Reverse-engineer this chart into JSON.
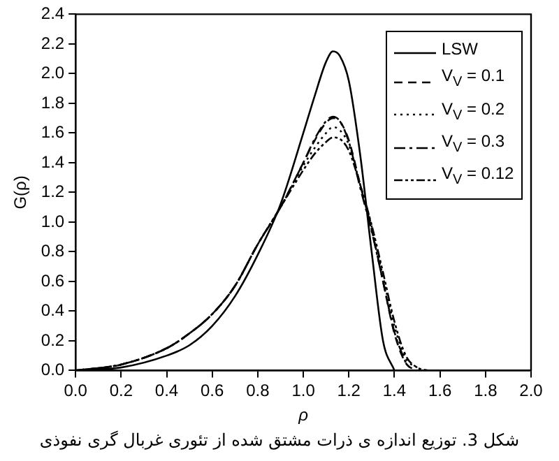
{
  "chart_data": {
    "type": "line",
    "xlabel": "ρ",
    "ylabel": "G(ρ)",
    "annotations": [
      "شکل 3. توزیع اندازه ی ذرات مشتق شده از تئوری غربال گری نفوذی"
    ],
    "x": [
      0,
      0.2,
      0.4,
      0.5,
      0.6,
      0.7,
      0.8,
      0.9,
      1.0,
      1.05,
      1.1,
      1.13,
      1.16,
      1.2,
      1.25,
      1.3,
      1.35,
      1.4,
      1.45,
      1.5,
      1.55
    ],
    "xlim": [
      0,
      2
    ],
    "xticks": [
      {
        "value": 0,
        "label": "0.0"
      },
      0.2,
      0.4,
      0.6,
      0.8,
      {
        "value": 1,
        "label": "1.0"
      },
      1.2,
      1.4,
      1.6,
      1.8,
      {
        "value": 2,
        "label": "2.0"
      }
    ],
    "ylim": [
      0,
      2.4
    ],
    "yticks": [
      {
        "value": 0,
        "label": "0.0"
      },
      0.2,
      0.4,
      0.6,
      0.8,
      {
        "value": 1,
        "label": "1.0"
      },
      1.2,
      1.4,
      1.6,
      1.8,
      {
        "value": 2,
        "label": "2.0"
      },
      2.2,
      2.4
    ],
    "grid": false,
    "legend": "top right",
    "marker": "none",
    "series": [
      {
        "name": "LSW",
        "color": "#000000",
        "line_style": "solid",
        "values": [
          0,
          0.02,
          0.1,
          0.17,
          0.3,
          0.5,
          0.78,
          1.12,
          1.6,
          1.85,
          2.08,
          2.15,
          2.12,
          1.95,
          1.45,
          0.8,
          0.2,
          0,
          null,
          null,
          null
        ]
      },
      {
        "name": "V$_{V}$ = 0.1",
        "color": "#000000",
        "line_style": "dashed",
        "values": [
          0,
          0.04,
          0.15,
          0.25,
          0.38,
          0.57,
          0.85,
          1.1,
          1.4,
          1.55,
          1.67,
          1.7,
          1.68,
          1.55,
          1.25,
          0.95,
          0.6,
          0.25,
          0.05,
          0,
          null
        ]
      },
      {
        "name": "V$_{V}$ = 0.2",
        "color": "#000000",
        "line_style": "dotted",
        "values": [
          0,
          0.04,
          0.15,
          0.25,
          0.38,
          0.57,
          0.85,
          1.1,
          1.38,
          1.5,
          1.6,
          1.64,
          1.62,
          1.52,
          1.25,
          0.97,
          0.63,
          0.3,
          0.08,
          0.02,
          null
        ]
      },
      {
        "name": "V$_{V}$ = 0.3",
        "color": "#000000",
        "line_style": "dashdot",
        "values": [
          0,
          0.04,
          0.15,
          0.25,
          0.38,
          0.57,
          0.85,
          1.1,
          1.4,
          1.56,
          1.68,
          1.71,
          1.68,
          1.54,
          1.23,
          0.94,
          0.6,
          0.26,
          0.05,
          null,
          null
        ]
      },
      {
        "name": "V$_{V}$ = 0.12",
        "color": "#000000",
        "line_style": "dashdotdot",
        "values": [
          0,
          0.04,
          0.15,
          0.25,
          0.38,
          0.57,
          0.85,
          1.1,
          1.35,
          1.46,
          1.54,
          1.57,
          1.56,
          1.48,
          1.25,
          0.98,
          0.66,
          0.33,
          0.1,
          0.02,
          0
        ]
      }
    ]
  }
}
